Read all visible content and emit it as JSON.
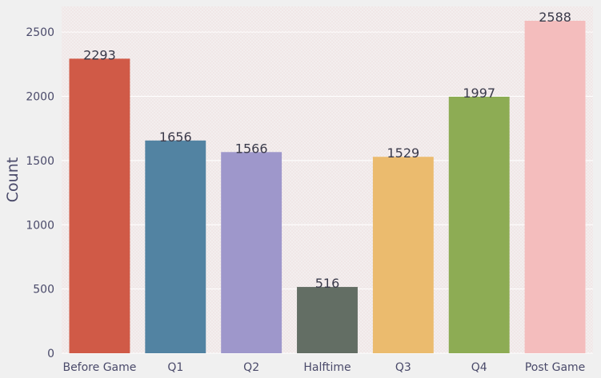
{
  "chart_data": {
    "type": "bar",
    "title": "",
    "xlabel": "",
    "ylabel": "Count",
    "categories": [
      "Before Game",
      "Q1",
      "Q2",
      "Halftime",
      "Q3",
      "Q4",
      "Post Game"
    ],
    "values": [
      2293,
      1656,
      1566,
      516,
      1529,
      1997,
      2588
    ],
    "value_labels": [
      "2293",
      "1656",
      "1566",
      "516",
      "1529",
      "1997",
      "2588"
    ],
    "colors": [
      "#d05a47",
      "#5283a2",
      "#9e97cb",
      "#636e64",
      "#ebbb6e",
      "#8dac54",
      "#f4bdbd"
    ],
    "ylim": [
      0,
      2700
    ],
    "yticks": [
      0,
      500,
      1000,
      1500,
      2000,
      2500
    ],
    "ytick_labels": [
      "0",
      "500",
      "1000",
      "1500",
      "2000",
      "2500"
    ],
    "grid": true,
    "background": "#f0f0f0",
    "plot_background": "#f0e8e8"
  }
}
